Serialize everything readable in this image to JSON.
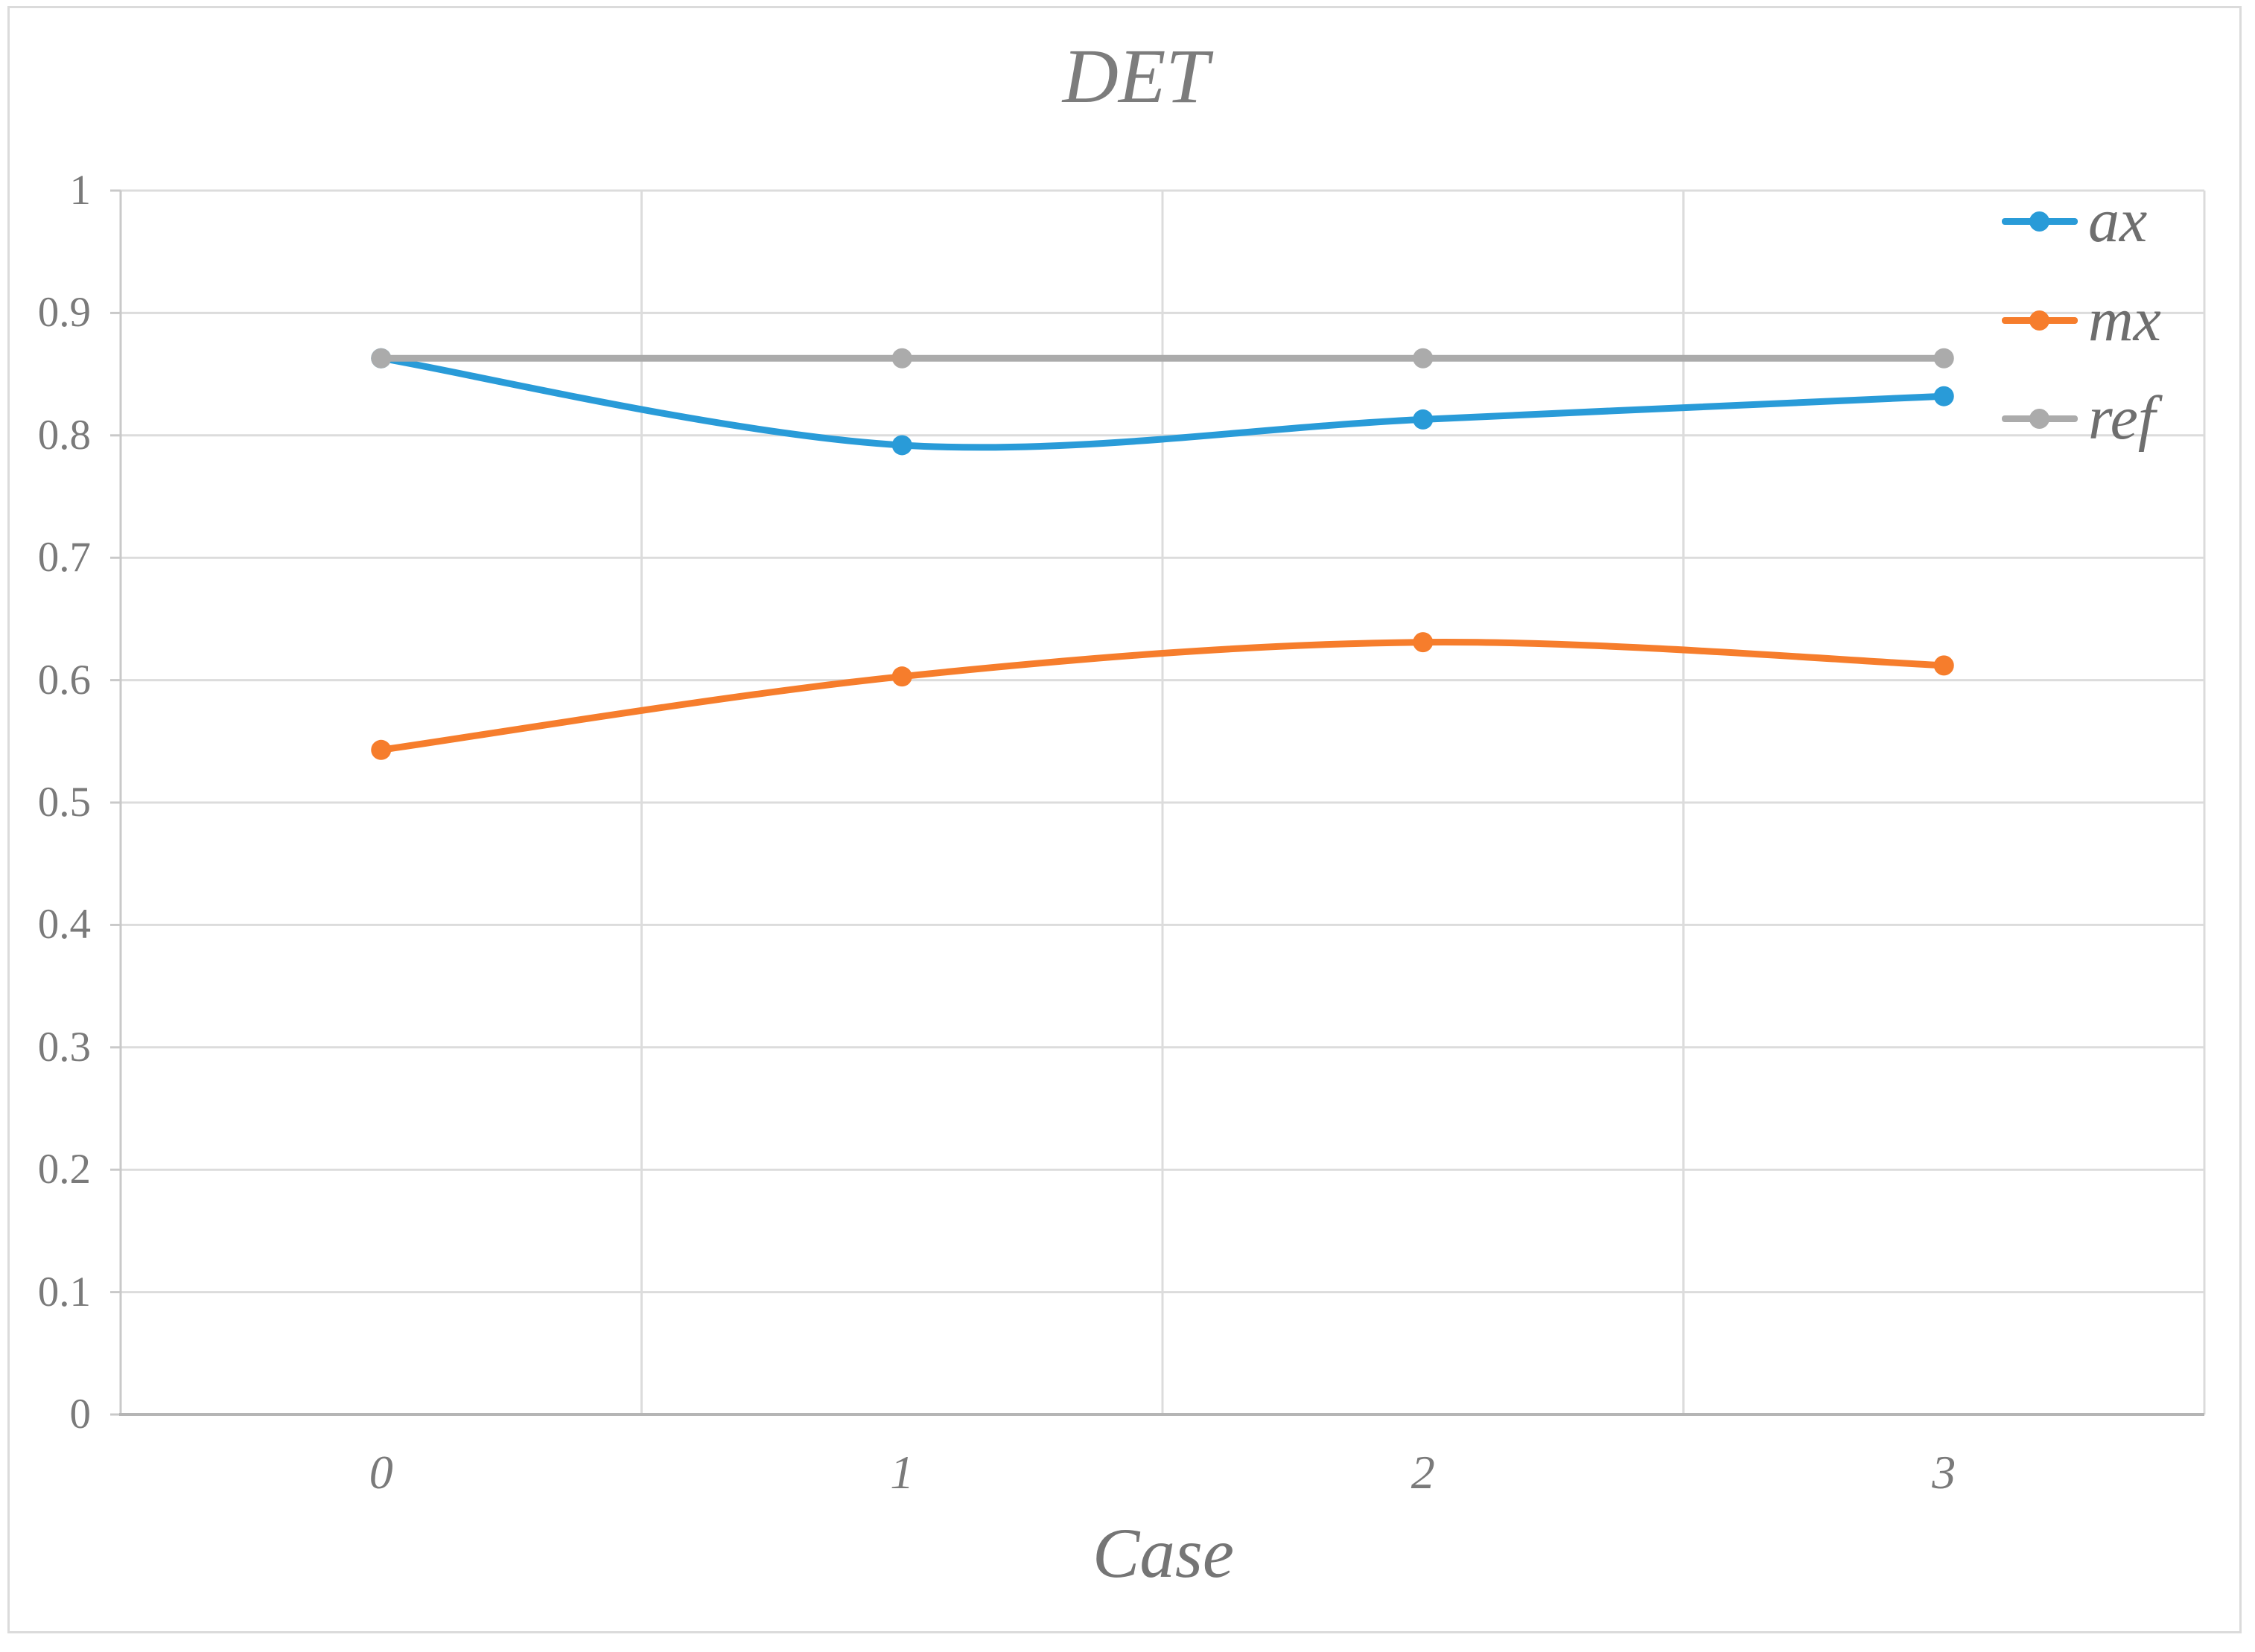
{
  "chart_data": {
    "type": "line",
    "title": "DET",
    "xlabel": "Case",
    "categories": [
      "0",
      "1",
      "2",
      "3"
    ],
    "series": [
      {
        "name": "ax",
        "color": "#299BD8",
        "values": [
          0.863,
          0.792,
          0.813,
          0.832
        ]
      },
      {
        "name": "mx",
        "color": "#F67D2C",
        "values": [
          0.543,
          0.603,
          0.631,
          0.612
        ]
      },
      {
        "name": "ref",
        "color": "#ABABAB",
        "values": [
          0.863,
          0.863,
          0.863,
          0.863
        ]
      }
    ],
    "ylim": [
      0,
      1
    ],
    "ytick_step": 0.1,
    "ytick_labels_top_to_bottom": [
      "1",
      "0.9",
      "0.8",
      "0.7",
      "0.6",
      "0.5",
      "0.4",
      "0.3",
      "0.2",
      "0.1",
      "0"
    ],
    "grid": true,
    "smooth_lines": true,
    "legend_position": "inside-top-right",
    "styles": {
      "gridline_color": "#DCDCDC",
      "left_axis_color": "#C9C9C9",
      "right_border_color": "#DBDBDB",
      "bottom_axis_color": "#B5B5B5",
      "text_color": "#7A7A7A",
      "title_color": "#7C7C7C",
      "legend_text_color": "#6E6E6E"
    }
  }
}
